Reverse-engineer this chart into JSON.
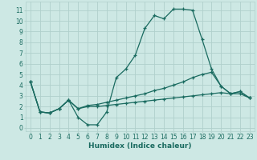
{
  "xlabel": "Humidex (Indice chaleur)",
  "bg_color": "#cde8e4",
  "grid_color": "#b0d0cc",
  "line_color": "#1a6b60",
  "series": {
    "main": {
      "x": [
        0,
        1,
        2,
        3,
        4,
        5,
        6,
        7,
        8,
        9,
        10,
        11,
        12,
        13,
        14,
        15,
        16,
        17,
        18,
        19,
        20,
        21,
        22,
        23
      ],
      "y": [
        4.3,
        1.5,
        1.4,
        1.8,
        2.6,
        1.0,
        0.3,
        0.3,
        1.5,
        4.7,
        5.5,
        6.8,
        9.3,
        10.5,
        10.2,
        11.1,
        11.1,
        11.0,
        8.3,
        5.5,
        3.9,
        3.2,
        3.4,
        2.8
      ]
    },
    "line2": {
      "x": [
        0,
        1,
        2,
        3,
        4,
        5,
        6,
        7,
        8,
        9,
        10,
        11,
        12,
        13,
        14,
        15,
        16,
        17,
        18,
        19,
        20,
        21,
        22,
        23
      ],
      "y": [
        4.3,
        1.5,
        1.4,
        1.8,
        2.6,
        1.8,
        2.1,
        2.2,
        2.4,
        2.6,
        2.8,
        3.0,
        3.2,
        3.5,
        3.7,
        4.0,
        4.3,
        4.7,
        5.0,
        5.2,
        3.9,
        3.2,
        3.4,
        2.8
      ]
    },
    "line3": {
      "x": [
        0,
        1,
        2,
        3,
        4,
        5,
        6,
        7,
        8,
        9,
        10,
        11,
        12,
        13,
        14,
        15,
        16,
        17,
        18,
        19,
        20,
        21,
        22,
        23
      ],
      "y": [
        4.3,
        1.5,
        1.4,
        1.8,
        2.6,
        1.8,
        2.0,
        2.0,
        2.1,
        2.2,
        2.3,
        2.4,
        2.5,
        2.6,
        2.7,
        2.8,
        2.9,
        3.0,
        3.1,
        3.2,
        3.3,
        3.2,
        3.2,
        2.8
      ]
    }
  },
  "ylim": [
    -0.3,
    11.8
  ],
  "xlim": [
    -0.5,
    23.5
  ],
  "yticks": [
    0,
    1,
    2,
    3,
    4,
    5,
    6,
    7,
    8,
    9,
    10,
    11
  ],
  "xticks": [
    0,
    1,
    2,
    3,
    4,
    5,
    6,
    7,
    8,
    9,
    10,
    11,
    12,
    13,
    14,
    15,
    16,
    17,
    18,
    19,
    20,
    21,
    22,
    23
  ],
  "tick_fontsize": 5.5,
  "xlabel_fontsize": 6.5
}
